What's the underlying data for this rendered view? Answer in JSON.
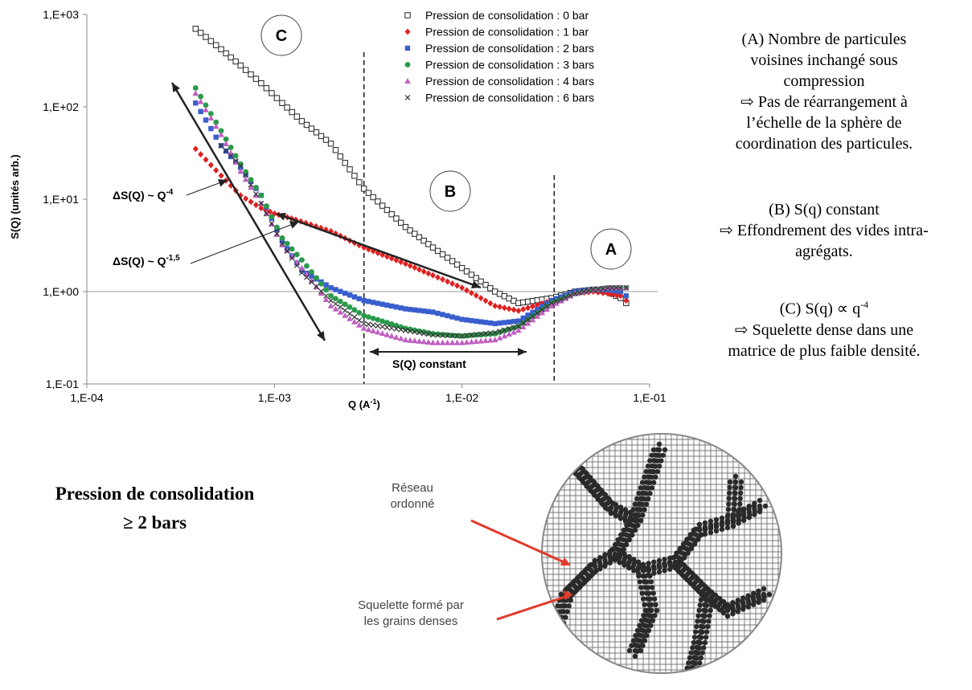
{
  "chart_data": {
    "type": "scatter",
    "x_scale": "log",
    "y_scale": "log",
    "xlim": [
      0.0001,
      0.1
    ],
    "ylim": [
      0.1,
      1000
    ],
    "xlabel": "Q (A-1)",
    "ylabel": "S(Q) (unités arb.)",
    "x_ticks": [
      "1,E-04",
      "1,E-03",
      "1,E-02",
      "1,E-01"
    ],
    "y_ticks": [
      "1,E+03",
      "1,E+02",
      "1,E+01",
      "1,E+00",
      "1,E-01"
    ],
    "legend_placement": "top-right",
    "series": [
      {
        "name": "Pression de consolidation : 0 bar",
        "marker": "open-square",
        "color": "#222222",
        "x": [
          0.00038,
          0.00052,
          0.00066,
          0.00085,
          0.0011,
          0.0014,
          0.002,
          0.003,
          0.005,
          0.007,
          0.01,
          0.015,
          0.02,
          0.03,
          0.04,
          0.05,
          0.06,
          0.07,
          0.075
        ],
        "y": [
          700,
          420,
          280,
          180,
          110,
          70,
          40,
          13,
          5,
          3,
          1.8,
          1.0,
          0.75,
          0.85,
          1.0,
          1.05,
          1.0,
          0.85,
          0.75
        ]
      },
      {
        "name": "Pression de consolidation : 1 bar",
        "marker": "diamond",
        "color": "#e02020",
        "x": [
          0.00038,
          0.00052,
          0.00066,
          0.00085,
          0.001,
          0.0013,
          0.002,
          0.003,
          0.005,
          0.007,
          0.01,
          0.015,
          0.02,
          0.03,
          0.04,
          0.05,
          0.06,
          0.07,
          0.075
        ],
        "y": [
          35,
          18,
          11,
          8,
          7,
          6,
          4.5,
          3,
          2,
          1.5,
          1.1,
          0.7,
          0.62,
          0.8,
          0.95,
          1.0,
          0.95,
          0.9,
          0.8
        ]
      },
      {
        "name": "Pression de consolidation : 2 bars",
        "marker": "square",
        "color": "#3a5fcd",
        "x": [
          0.00038,
          0.00052,
          0.00066,
          0.00085,
          0.0011,
          0.0014,
          0.002,
          0.003,
          0.005,
          0.007,
          0.01,
          0.015,
          0.02,
          0.03,
          0.04,
          0.05,
          0.06,
          0.07,
          0.075
        ],
        "y": [
          110,
          38,
          22,
          11,
          3.5,
          1.7,
          1.1,
          0.8,
          0.65,
          0.6,
          0.5,
          0.45,
          0.48,
          0.8,
          1.0,
          1.05,
          1.05,
          1.0,
          0.9
        ]
      },
      {
        "name": "Pression de consolidation : 3 bars",
        "marker": "circle",
        "color": "#2a9a4a",
        "x": [
          0.00038,
          0.00052,
          0.00066,
          0.00085,
          0.0011,
          0.0014,
          0.002,
          0.003,
          0.005,
          0.007,
          0.01,
          0.015,
          0.02,
          0.03,
          0.04,
          0.05,
          0.06,
          0.07,
          0.075
        ],
        "y": [
          160,
          55,
          24,
          11,
          3.8,
          2.2,
          0.9,
          0.55,
          0.4,
          0.35,
          0.33,
          0.35,
          0.42,
          0.75,
          0.95,
          1.05,
          1.1,
          1.1,
          1.1
        ]
      },
      {
        "name": "Pression de consolidation : 4 bars",
        "marker": "triangle",
        "color": "#c060c0",
        "x": [
          0.00038,
          0.00052,
          0.00066,
          0.00085,
          0.0011,
          0.0014,
          0.002,
          0.003,
          0.005,
          0.007,
          0.01,
          0.015,
          0.02,
          0.03,
          0.04,
          0.05,
          0.06,
          0.07,
          0.075
        ],
        "y": [
          140,
          50,
          20,
          9,
          3.2,
          1.8,
          0.7,
          0.4,
          0.3,
          0.28,
          0.28,
          0.3,
          0.38,
          0.7,
          0.95,
          1.05,
          1.1,
          1.1,
          1.1
        ]
      },
      {
        "name": "Pression de consolidation : 6 bars",
        "marker": "x",
        "color": "#333333",
        "x": [
          0.00052,
          0.00066,
          0.00085,
          0.0011,
          0.0014,
          0.002,
          0.003,
          0.005,
          0.007,
          0.01,
          0.015,
          0.02,
          0.03,
          0.04,
          0.05,
          0.06,
          0.07,
          0.075
        ],
        "y": [
          38,
          23,
          9,
          3.3,
          1.6,
          0.8,
          0.45,
          0.38,
          0.34,
          0.33,
          0.36,
          0.42,
          0.75,
          0.95,
          1.05,
          1.1,
          1.1,
          1.1
        ]
      }
    ],
    "vertical_dashed_lines_x": [
      0.003,
      0.031
    ],
    "reference_line_y": 1,
    "annotations": {
      "region_C": "C",
      "region_B": "B",
      "region_A": "A",
      "slope_4": "ΔS(Q) ~ Q-4",
      "slope_15": "ΔS(Q) ~ Q-1,5",
      "constant": "S(Q) constant"
    }
  },
  "labels": {
    "ylabel_main": "S(Q) (unités arb.)",
    "xlabel_main": "Q (A",
    "xlabel_sup": "-1",
    "xlabel_close": ")",
    "slope4_main": "ΔS(Q) ~ Q",
    "slope4_sup": "-4",
    "slope15_main": "ΔS(Q) ~ Q",
    "slope15_sup": "-1,5"
  },
  "side_text": {
    "a_lines": [
      "(A) Nombre de particules",
      "voisines inchangé sous",
      "compression",
      "⇨ Pas de réarrangement à",
      "l’échelle de la sphère de",
      "coordination des particules."
    ],
    "b_lines": [
      "(B) S(q) constant",
      "⇨ Effondrement des vides intra-",
      "agrégats."
    ],
    "c_line1_main": "(C) S(q) ∝ q",
    "c_line1_sup": "-4",
    "c_lines": [
      "⇨ Squelette dense dans une",
      "matrice de plus faible densité."
    ]
  },
  "bottom": {
    "title_line1": "Pression de consolidation",
    "title_line2": "≥ 2 bars",
    "label_network_1": "Réseau",
    "label_network_2": "ordonné",
    "label_skeleton_1": "Squelette formé par",
    "label_skeleton_2": "les grains denses"
  }
}
